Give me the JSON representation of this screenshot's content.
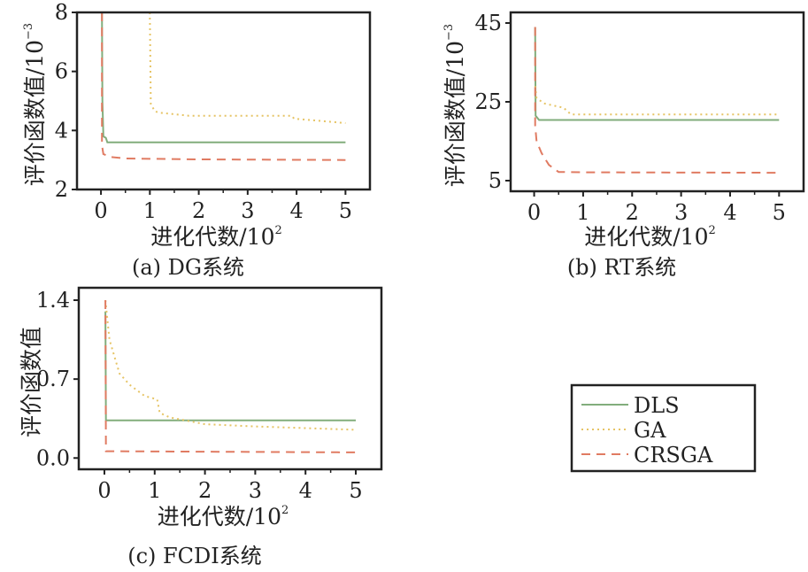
{
  "colors": {
    "DLS": "#82ad7c",
    "GA": "#e6c465",
    "CRSGA": "#e07b62",
    "axis": "#222222"
  },
  "legend": {
    "placement": "lower-right",
    "entries": [
      "DLS",
      "GA",
      "CRSGA"
    ]
  },
  "chart_data": [
    {
      "type": "line",
      "title": "(a) DG系统",
      "xlabel": "进化代数/10",
      "xlabel_exp": "2",
      "ylabel": "评价函数值/10",
      "ylabel_exp": "−3",
      "xlim": [
        -0.49,
        5.5
      ],
      "ylim": [
        2,
        8
      ],
      "xticks": [
        0,
        1,
        2,
        3,
        4,
        5
      ],
      "xtick_labels": [
        "0",
        "1",
        "2",
        "3",
        "4",
        "5"
      ],
      "yticks": [
        2,
        4,
        6,
        8
      ],
      "ytick_labels": [
        "2",
        "4",
        "6",
        "8"
      ],
      "series": [
        {
          "name": "DLS",
          "style": "solid",
          "points": [
            [
              0.02,
              8
            ],
            [
              0.03,
              5
            ],
            [
              0.05,
              3.8
            ],
            [
              0.1,
              3.75
            ],
            [
              0.13,
              3.6
            ],
            [
              5,
              3.6
            ]
          ]
        },
        {
          "name": "GA",
          "style": "dotted",
          "points": [
            [
              1,
              8
            ],
            [
              1.02,
              4.9
            ],
            [
              1.1,
              4.65
            ],
            [
              1.2,
              4.6
            ],
            [
              1.8,
              4.5
            ],
            [
              3.9,
              4.5
            ],
            [
              3.95,
              4.4
            ],
            [
              5,
              4.25
            ]
          ]
        },
        {
          "name": "CRSGA",
          "style": "dashed",
          "points": [
            [
              0.02,
              8
            ],
            [
              0.02,
              3.5
            ],
            [
              0.05,
              3.2
            ],
            [
              0.2,
              3.1
            ],
            [
              0.5,
              3.05
            ],
            [
              2,
              3.02
            ],
            [
              5,
              3.0
            ]
          ]
        }
      ]
    },
    {
      "type": "line",
      "title": "(b) RT系统",
      "xlabel": "进化代数/10",
      "xlabel_exp": "2",
      "ylabel": "评价函数值/10",
      "ylabel_exp": "−3",
      "xlim": [
        -0.48,
        5.5
      ],
      "ylim": [
        2.3,
        47.7
      ],
      "xticks": [
        0,
        1,
        2,
        3,
        4,
        5
      ],
      "xtick_labels": [
        "0",
        "1",
        "2",
        "3",
        "4",
        "5"
      ],
      "yticks": [
        5,
        25,
        45
      ],
      "ytick_labels": [
        "5",
        "25",
        "45"
      ],
      "series": [
        {
          "name": "DLS",
          "style": "solid",
          "points": [
            [
              0.02,
              44
            ],
            [
              0.03,
              21.5
            ],
            [
              0.1,
              20.4
            ],
            [
              5,
              20.4
            ]
          ]
        },
        {
          "name": "GA",
          "style": "dotted",
          "points": [
            [
              0.02,
              29
            ],
            [
              0.05,
              26
            ],
            [
              0.2,
              24.6
            ],
            [
              0.6,
              23.5
            ],
            [
              0.75,
              21.8
            ],
            [
              5,
              21.8
            ]
          ]
        },
        {
          "name": "CRSGA",
          "style": "dashed",
          "points": [
            [
              0.02,
              44
            ],
            [
              0.02,
              19
            ],
            [
              0.05,
              15
            ],
            [
              0.15,
              12
            ],
            [
              0.3,
              9
            ],
            [
              0.5,
              7.2
            ],
            [
              1,
              7.1
            ],
            [
              5,
              7.0
            ]
          ]
        }
      ]
    },
    {
      "type": "line",
      "title": "(c) FCDI系统",
      "xlabel": "进化代数/10",
      "xlabel_exp": "2",
      "ylabel": "评价函数值",
      "ylabel_exp": "",
      "xlim": [
        -0.51,
        5.51
      ],
      "ylim": [
        -0.1,
        1.51
      ],
      "xticks": [
        0,
        1,
        2,
        3,
        4,
        5
      ],
      "xtick_labels": [
        "0",
        "1",
        "2",
        "3",
        "4",
        "5"
      ],
      "yticks": [
        0,
        0.7,
        1.4
      ],
      "ytick_labels": [
        "0.0",
        "0.7",
        "1.4"
      ],
      "series": [
        {
          "name": "DLS",
          "style": "solid",
          "points": [
            [
              0.02,
              1.3
            ],
            [
              0.03,
              0.334
            ],
            [
              5,
              0.334
            ]
          ]
        },
        {
          "name": "GA",
          "style": "dotted",
          "points": [
            [
              0.02,
              1.4
            ],
            [
              0.1,
              1.05
            ],
            [
              0.3,
              0.75
            ],
            [
              0.5,
              0.65
            ],
            [
              0.8,
              0.55
            ],
            [
              1.05,
              0.52
            ],
            [
              1.1,
              0.4
            ],
            [
              1.3,
              0.36
            ],
            [
              2,
              0.3
            ],
            [
              3,
              0.28
            ],
            [
              5,
              0.25
            ]
          ]
        },
        {
          "name": "CRSGA",
          "style": "dashed",
          "points": [
            [
              0.02,
              1.4
            ],
            [
              0.03,
              0.06
            ],
            [
              5,
              0.05
            ]
          ]
        }
      ]
    }
  ]
}
